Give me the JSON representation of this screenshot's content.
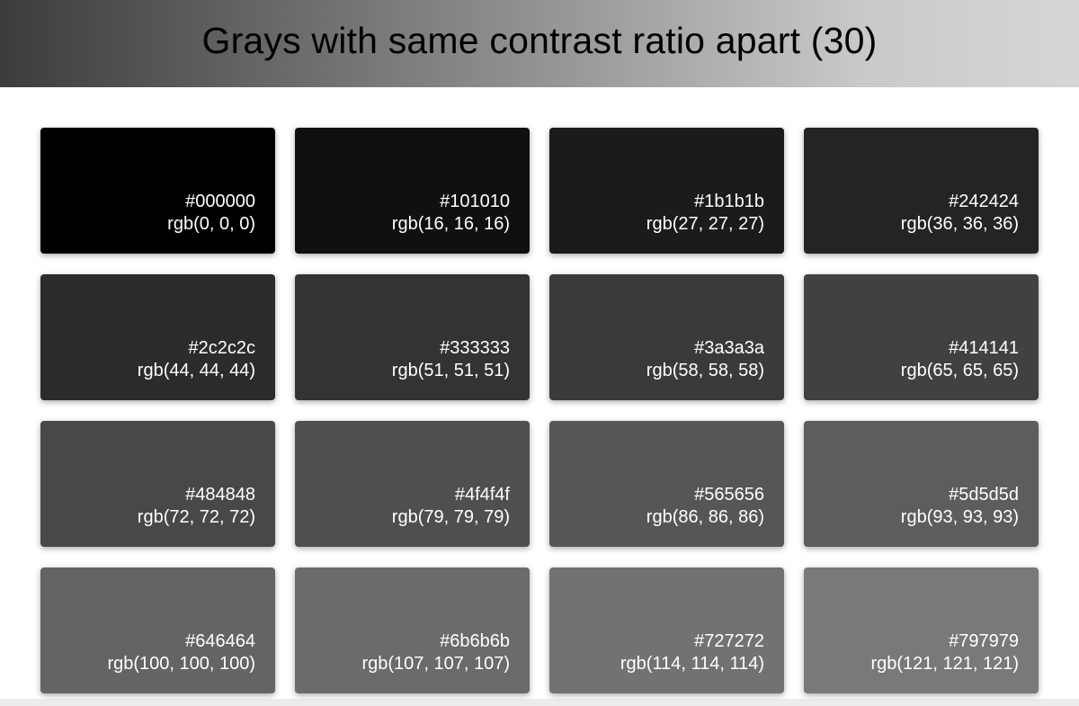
{
  "header": {
    "title": "Grays with same contrast ratio apart (30)"
  },
  "swatches": [
    {
      "hex": "#000000",
      "rgb": "rgb(0, 0, 0)"
    },
    {
      "hex": "#101010",
      "rgb": "rgb(16, 16, 16)"
    },
    {
      "hex": "#1b1b1b",
      "rgb": "rgb(27, 27, 27)"
    },
    {
      "hex": "#242424",
      "rgb": "rgb(36, 36, 36)"
    },
    {
      "hex": "#2c2c2c",
      "rgb": "rgb(44, 44, 44)"
    },
    {
      "hex": "#333333",
      "rgb": "rgb(51, 51, 51)"
    },
    {
      "hex": "#3a3a3a",
      "rgb": "rgb(58, 58, 58)"
    },
    {
      "hex": "#414141",
      "rgb": "rgb(65, 65, 65)"
    },
    {
      "hex": "#484848",
      "rgb": "rgb(72, 72, 72)"
    },
    {
      "hex": "#4f4f4f",
      "rgb": "rgb(79, 79, 79)"
    },
    {
      "hex": "#565656",
      "rgb": "rgb(86, 86, 86)"
    },
    {
      "hex": "#5d5d5d",
      "rgb": "rgb(93, 93, 93)"
    },
    {
      "hex": "#646464",
      "rgb": "rgb(100, 100, 100)"
    },
    {
      "hex": "#6b6b6b",
      "rgb": "rgb(107, 107, 107)"
    },
    {
      "hex": "#727272",
      "rgb": "rgb(114, 114, 114)"
    },
    {
      "hex": "#797979",
      "rgb": "rgb(121, 121, 121)"
    }
  ]
}
